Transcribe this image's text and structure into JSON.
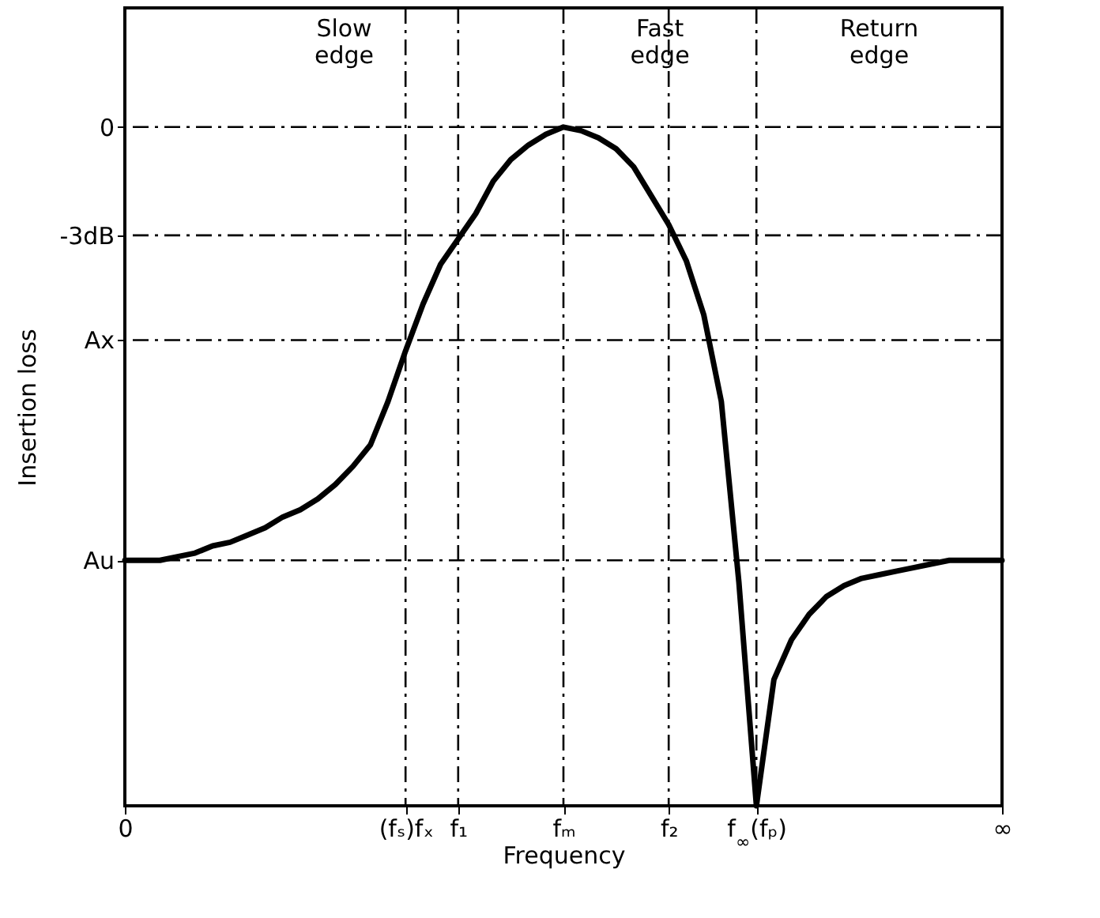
{
  "chart_data": {
    "type": "line",
    "xlabel": "Frequency",
    "ylabel": "Insertion loss",
    "categories": [
      "0",
      null,
      null,
      null,
      null,
      null,
      null,
      null,
      null,
      null,
      null,
      null,
      null,
      null,
      null,
      null,
      "(fₛ)fₓ",
      null,
      null,
      "f₁",
      null,
      null,
      null,
      null,
      null,
      "fₘ",
      null,
      null,
      null,
      null,
      null,
      "f₂",
      null,
      null,
      null,
      null,
      "f$_{∞}$(fₚ)",
      null,
      null,
      null,
      null,
      null,
      null,
      null,
      null,
      null,
      null,
      null,
      null,
      null,
      "∞"
    ],
    "series": [
      {
        "color": "#000000",
        "values": [
          -12.0,
          -12.0,
          -12.0,
          -11.9,
          -11.8,
          -11.6,
          -11.5,
          -11.3,
          -11.1,
          -10.8,
          -10.6,
          -10.3,
          -9.9,
          -9.4,
          -8.8,
          -7.6,
          -6.2,
          -4.9,
          -3.8,
          -3.1,
          -2.4,
          -1.5,
          -0.9,
          -0.5,
          -0.2,
          0,
          -0.1,
          -0.3,
          -0.6,
          -1.1,
          -1.9,
          -2.7,
          -3.7,
          -5.2,
          -7.6,
          -12.6,
          -18.8,
          -15.3,
          -14.2,
          -13.5,
          -13.0,
          -12.7,
          -12.5,
          -12.4,
          -12.3,
          -12.2,
          -12.1,
          -12.0,
          -12.0,
          -12.0,
          -12.0
        ]
      }
    ],
    "ylim": [
      -18.8,
      3.3
    ],
    "yticks": [
      0,
      {
        "value": -3,
        "label": "-3dB"
      },
      {
        "value": -5.9,
        "label": "Ax"
      },
      {
        "value": -12,
        "label": "Au"
      }
    ],
    "ref_lines": [
      {
        "axis": "y",
        "value": 0,
        "line_style": "dashdot"
      },
      {
        "axis": "y",
        "value": -3,
        "line_style": "dashdot"
      },
      {
        "axis": "y",
        "value": -5.9,
        "line_style": "dashdot"
      },
      {
        "axis": "y",
        "value": -12,
        "line_style": "dashdot"
      },
      {
        "axis": "x",
        "value": "(fₛ)fₓ",
        "line_style": "dashdot"
      },
      {
        "axis": "x",
        "value": "f₁",
        "line_style": "dashdot"
      },
      {
        "axis": "x",
        "value": "fₘ",
        "line_style": "dashdot"
      },
      {
        "axis": "x",
        "value": "f₂",
        "line_style": "dashdot"
      },
      {
        "axis": "x",
        "value": "f$_{∞}$(fₚ)",
        "line_style": "dashdot"
      }
    ],
    "annotations": [
      "Slow edge",
      "Fast edge",
      "Return edge"
    ],
    "grid": false,
    "legend": false,
    "marker": "none",
    "line_style": "solid"
  }
}
